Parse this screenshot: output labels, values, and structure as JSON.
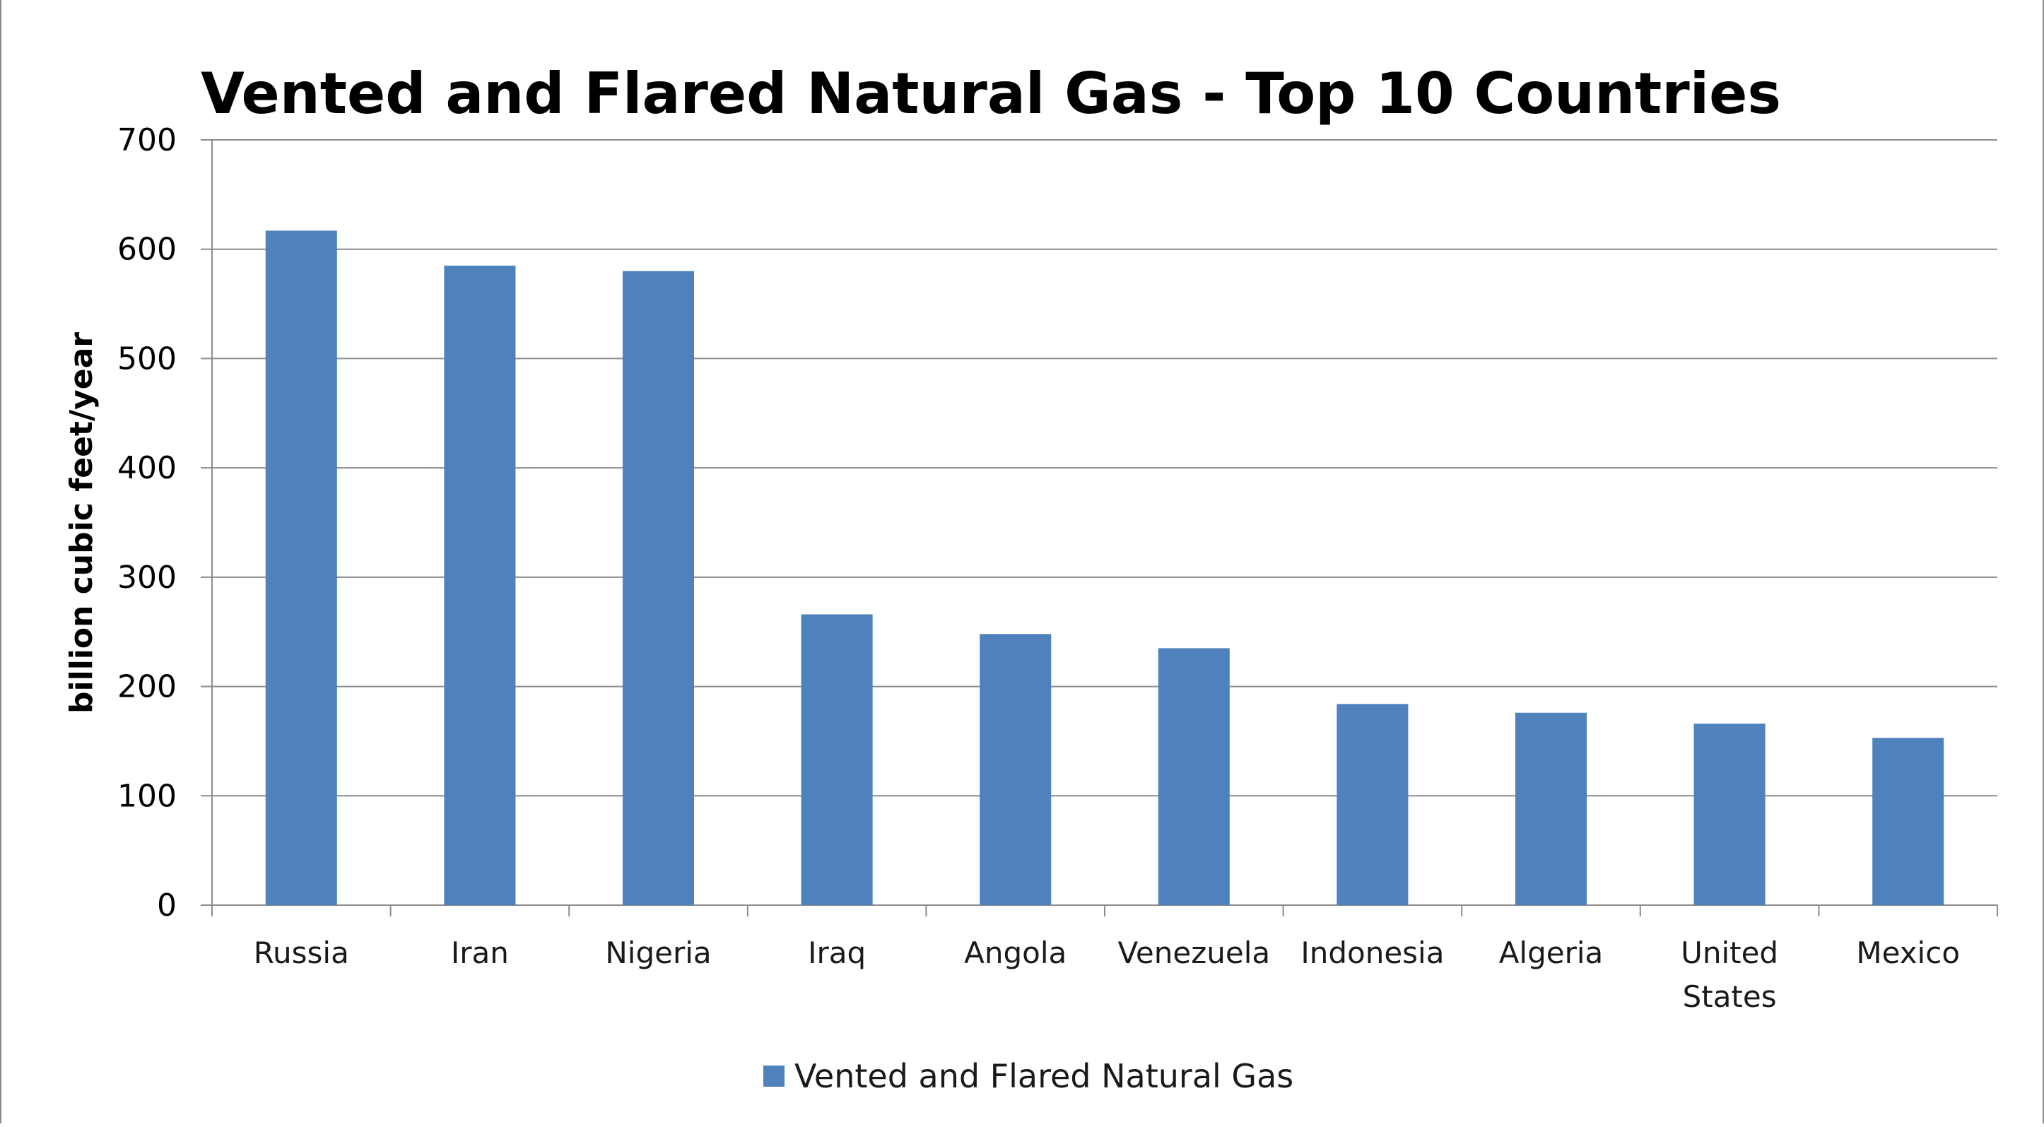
{
  "chart_data": {
    "type": "bar",
    "title": "Vented and Flared Natural Gas - Top 10 Countries",
    "xlabel": "",
    "ylabel": "billion cubic feet/year",
    "ylim": [
      0,
      700
    ],
    "yticks": [
      0,
      100,
      200,
      300,
      400,
      500,
      600,
      700
    ],
    "grid": true,
    "legend_position": "bottom",
    "categories": [
      "Russia",
      "Iran",
      "Nigeria",
      "Iraq",
      "Angola",
      "Venezuela",
      "Indonesia",
      "Algeria",
      "United States",
      "Mexico"
    ],
    "category_lines": [
      [
        "Russia"
      ],
      [
        "Iran"
      ],
      [
        "Nigeria"
      ],
      [
        "Iraq"
      ],
      [
        "Angola"
      ],
      [
        "Venezuela"
      ],
      [
        "Indonesia"
      ],
      [
        "Algeria"
      ],
      [
        "United",
        "States"
      ],
      [
        "Mexico"
      ]
    ],
    "series": [
      {
        "name": "Vented and Flared Natural Gas",
        "color": "#4f81bd",
        "values": [
          617,
          585,
          580,
          266,
          248,
          235,
          184,
          176,
          166,
          153
        ]
      }
    ]
  }
}
